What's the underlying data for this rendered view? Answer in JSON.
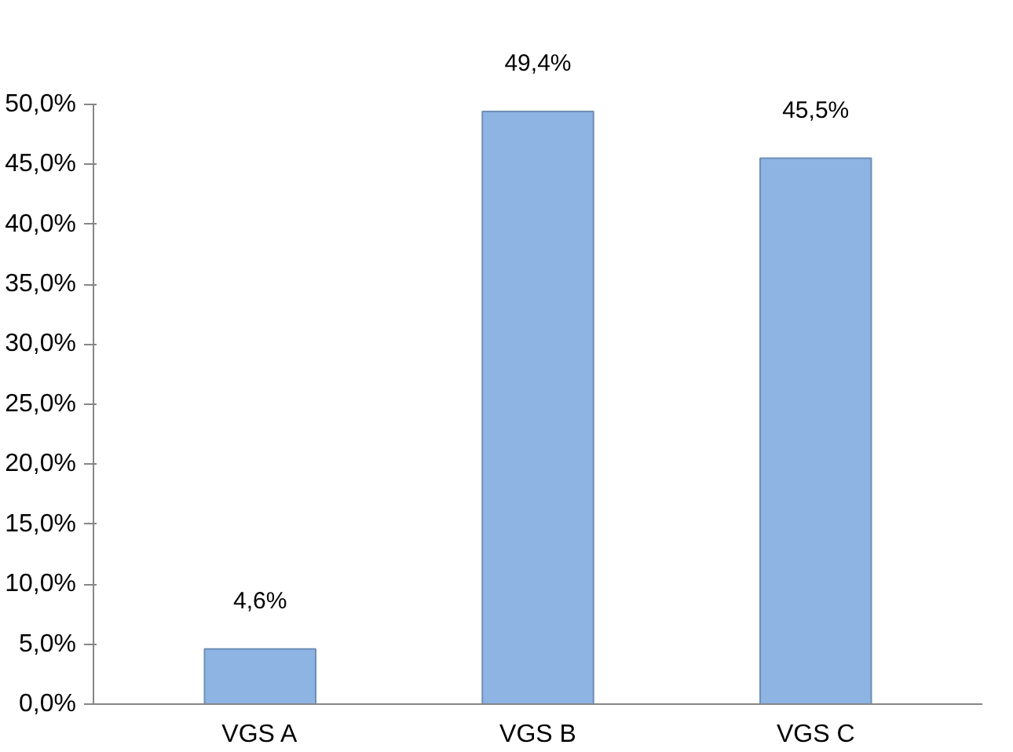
{
  "chart_data": {
    "type": "bar",
    "categories": [
      "VGS A",
      "VGS B",
      "VGS C"
    ],
    "values": [
      4.6,
      49.4,
      45.5
    ],
    "color": "#8db4e2",
    "value_labels": [
      "4,6%",
      "49,4%",
      "45,5%"
    ],
    "ylim": [
      0,
      50
    ],
    "yticks": [
      {
        "value": 0,
        "label": "0,0%"
      },
      {
        "value": 5,
        "label": "5,0%"
      },
      {
        "value": 10,
        "label": "10,0%"
      },
      {
        "value": 15,
        "label": "15,0%"
      },
      {
        "value": 20,
        "label": "20,0%"
      },
      {
        "value": 25,
        "label": "25,0%"
      },
      {
        "value": 30,
        "label": "30,0%"
      },
      {
        "value": 35,
        "label": "35,0%"
      },
      {
        "value": 40,
        "label": "40,0%"
      },
      {
        "value": 45,
        "label": "45,0%"
      },
      {
        "value": 50,
        "label": "50,0%"
      }
    ],
    "grid": false
  }
}
